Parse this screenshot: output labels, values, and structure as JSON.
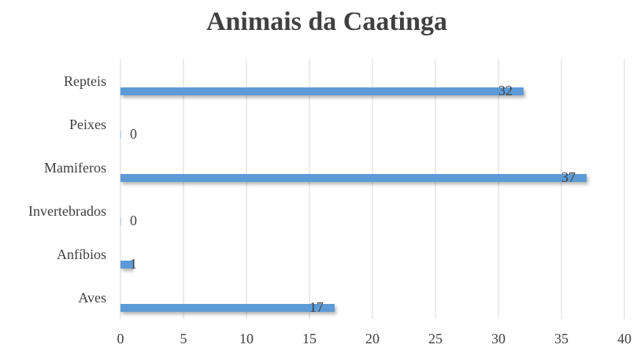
{
  "chart_data": {
    "type": "bar",
    "orientation": "horizontal",
    "title": "Animais da Caatinga",
    "categories": [
      "Repteis",
      "Peixes",
      "Mamiferos",
      "Invertebrados",
      "Anfíbios",
      "Aves"
    ],
    "values": [
      32,
      0,
      37,
      0,
      1,
      17
    ],
    "color": "#5b9bd5",
    "xlim": [
      0,
      40
    ],
    "xticks": [
      0,
      5,
      10,
      15,
      20,
      25,
      30,
      35,
      40
    ],
    "grid": true
  }
}
